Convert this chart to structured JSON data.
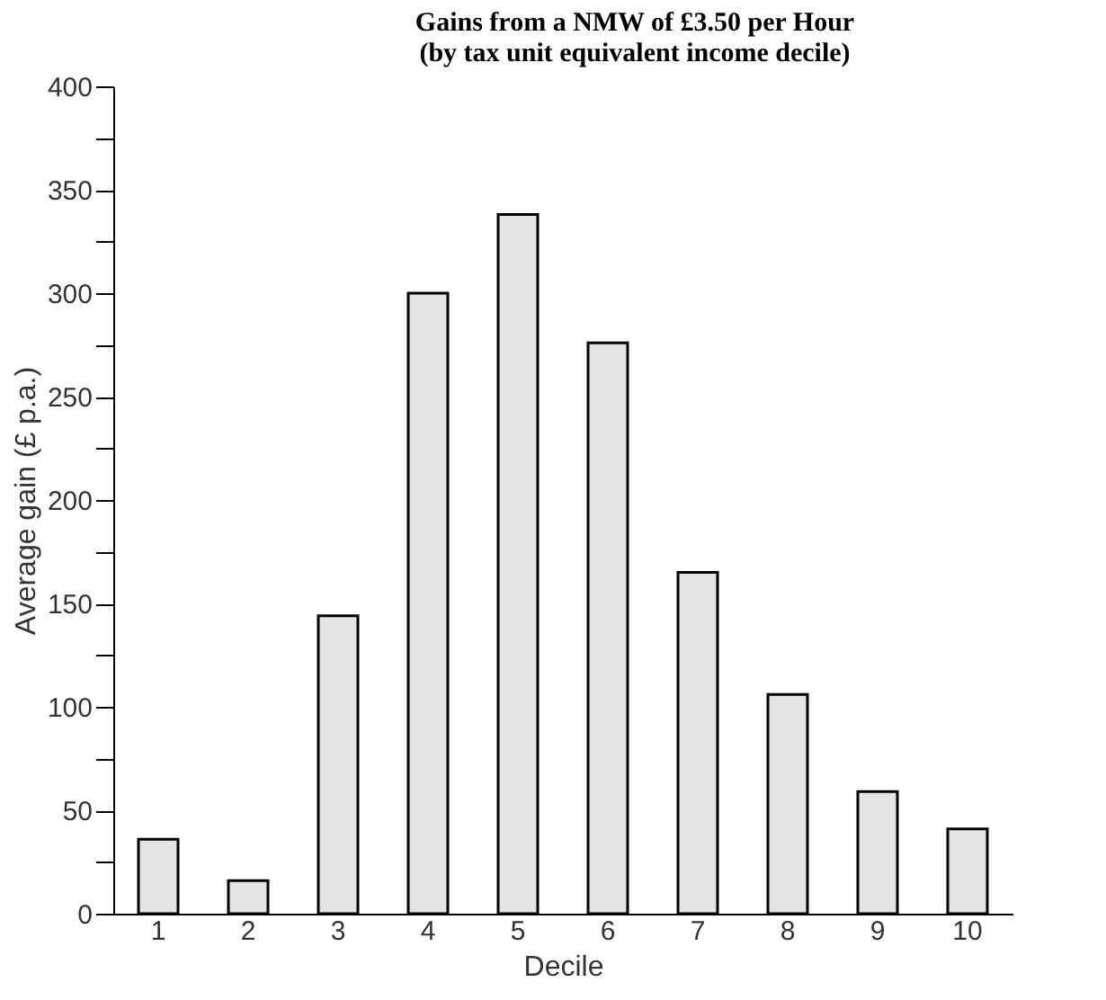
{
  "chart_data": {
    "type": "bar",
    "title": [
      "Gains from a NMW of £3.50 per Hour",
      "(by tax unit equivalent income decile)"
    ],
    "xlabel": "Decile",
    "ylabel": "Average gain (£ p.a.)",
    "categories": [
      "1",
      "2",
      "3",
      "4",
      "5",
      "6",
      "7",
      "8",
      "9",
      "10"
    ],
    "values": [
      36,
      16,
      144,
      300,
      338,
      276,
      165,
      106,
      59,
      41
    ],
    "color": "#e4e4e4",
    "ylim": [
      0,
      400
    ],
    "yticks": [
      0,
      {
        "value": 25,
        "label": null
      },
      50,
      {
        "value": 75,
        "label": null
      },
      100,
      {
        "value": 125,
        "label": null
      },
      150,
      {
        "value": 175,
        "label": null
      },
      200,
      {
        "value": 225,
        "label": null
      },
      250,
      {
        "value": 275,
        "label": null
      },
      300,
      {
        "value": 325,
        "label": null
      },
      350,
      {
        "value": 375,
        "label": null
      },
      400
    ],
    "grid": false
  }
}
